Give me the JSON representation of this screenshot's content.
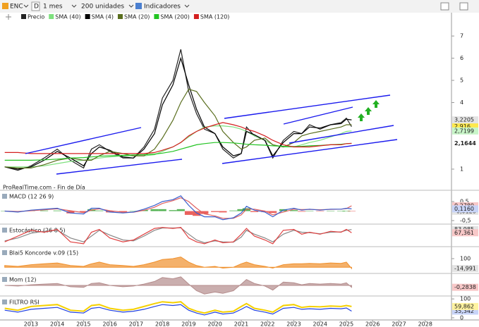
{
  "toolbar": {
    "symbol": "ENC",
    "period_letter": "D",
    "period": "1 mes",
    "units": "200 unidades",
    "indicators": "Indicadores"
  },
  "source": "ProRealTime.com - Fin de Día",
  "chart_data": [
    {
      "type": "line",
      "x": [
        2012.0,
        2012.5,
        2013.0,
        2013.5,
        2014.0,
        2014.5,
        2015.0,
        2015.3,
        2015.6,
        2016.0,
        2016.5,
        2016.9,
        2017.3,
        2017.7,
        2018.0,
        2018.4,
        2018.7,
        2019.0,
        2019.3,
        2019.6,
        2020.0,
        2020.3,
        2020.7,
        2021.0,
        2021.2,
        2021.5,
        2021.9,
        2022.2,
        2022.6,
        2023.0,
        2023.3,
        2023.6,
        2024.0,
        2024.4,
        2024.8,
        2025.0,
        2025.2
      ],
      "xlim": [
        2011.82,
        2029.0
      ],
      "xticks": [
        2013,
        2014,
        2015,
        2016,
        2017,
        2018,
        2019,
        2020,
        2021,
        2022,
        2023,
        2024,
        2025,
        2026,
        2027,
        2028
      ],
      "ylim": [
        0.11,
        7.67
      ],
      "yticks": [
        1,
        4,
        5,
        6,
        7
      ],
      "series": [
        {
          "name": "Precio",
          "color": "#222222",
          "style": "line",
          "values": [
            1.1,
            0.95,
            1.15,
            1.5,
            1.9,
            1.4,
            1.05,
            1.9,
            2.1,
            1.8,
            1.5,
            1.5,
            2.0,
            2.8,
            4.2,
            5.0,
            6.4,
            4.5,
            3.5,
            2.8,
            2.6,
            1.9,
            1.5,
            1.7,
            2.9,
            2.5,
            2.3,
            1.5,
            2.3,
            2.7,
            2.6,
            3.0,
            2.8,
            3.0,
            3.1,
            3.3,
            2.916
          ],
          "last_value_label": "2,916",
          "label_fill": "#ffe94d"
        },
        {
          "name": "SMA (40)",
          "color": "#7ee07e",
          "style": "line",
          "values": [
            1.1,
            1.1,
            1.1,
            1.15,
            1.25,
            1.35,
            1.4,
            1.45,
            1.5,
            1.55,
            1.6,
            1.6,
            1.6,
            1.65,
            1.8,
            2.0,
            2.2,
            2.45,
            2.7,
            2.9,
            2.95,
            2.95,
            2.9,
            2.8,
            2.7,
            2.5,
            2.3,
            2.1,
            2.0,
            2.0,
            2.1,
            2.2,
            2.3,
            2.45,
            2.6,
            2.7,
            2.7199
          ],
          "last_value_label": "2,7199",
          "label_fill": "#c8f5c8"
        },
        {
          "name": "SMA (4)",
          "color": "#000000",
          "style": "line",
          "values": [
            1.1,
            1.0,
            1.1,
            1.4,
            1.8,
            1.5,
            1.15,
            1.7,
            2.0,
            1.85,
            1.55,
            1.5,
            1.9,
            2.6,
            3.9,
            4.8,
            6.0,
            4.8,
            3.7,
            2.9,
            2.6,
            2.0,
            1.6,
            1.7,
            2.7,
            2.55,
            2.3,
            1.6,
            2.2,
            2.6,
            2.6,
            2.9,
            2.85,
            3.0,
            3.05,
            3.25,
            3.2205
          ],
          "last_value_label": "3,2205",
          "label_fill": "#e4e4e4"
        },
        {
          "name": "SMA (20)",
          "color": "#5a6e1e",
          "style": "line",
          "values": [
            1.1,
            1.05,
            1.05,
            1.2,
            1.4,
            1.5,
            1.4,
            1.4,
            1.6,
            1.8,
            1.7,
            1.6,
            1.6,
            1.9,
            2.4,
            3.2,
            4.0,
            4.6,
            4.5,
            4.0,
            3.4,
            2.7,
            2.2,
            1.9,
            2.0,
            2.3,
            2.4,
            2.1,
            2.0,
            2.2,
            2.5,
            2.6,
            2.7,
            2.8,
            2.9,
            3.0,
            3.0
          ]
        },
        {
          "name": "SMA (200)",
          "color": "#22c422",
          "style": "line",
          "values": [
            1.4,
            1.4,
            1.4,
            1.42,
            1.45,
            1.5,
            1.52,
            1.55,
            1.58,
            1.6,
            1.62,
            1.64,
            1.65,
            1.68,
            1.72,
            1.8,
            1.9,
            2.0,
            2.1,
            2.15,
            2.2,
            2.2,
            2.18,
            2.15,
            2.12,
            2.1,
            2.08,
            2.05,
            2.03,
            2.02,
            2.03,
            2.05,
            2.07,
            2.1,
            2.12,
            2.15,
            2.1644
          ],
          "last_value_label": "2,1644",
          "label_fill": "#ffffff"
        },
        {
          "name": "SMA (120)",
          "color": "#d42020",
          "style": "line",
          "values": [
            1.75,
            1.75,
            1.7,
            1.7,
            1.7,
            1.7,
            1.7,
            1.7,
            1.7,
            1.7,
            1.7,
            1.7,
            1.7,
            1.75,
            1.85,
            2.0,
            2.2,
            2.5,
            2.7,
            2.85,
            3.0,
            3.1,
            3.0,
            2.9,
            2.8,
            2.7,
            2.5,
            2.3,
            2.1,
            2.0,
            2.0,
            2.0,
            2.05,
            2.1,
            2.1,
            2.15,
            2.16
          ]
        }
      ]
    },
    {
      "type": "line",
      "title": "MACD (12 26 9)",
      "ylim": [
        -0.685,
        1.02
      ],
      "yticks": [
        {
          "value": 0.5,
          "label": "0,5"
        },
        {
          "value": -0.5,
          "label": "-0,5"
        }
      ],
      "series": [
        {
          "color": "#2ca02c",
          "negative_color": "#e53935",
          "style": "bars",
          "values": [
            0,
            -0.03,
            0.03,
            0.03,
            0.03,
            -0.12,
            -0.07,
            0.1,
            0.03,
            -0.07,
            -0.04,
            0.01,
            0.06,
            0.1,
            0.1,
            0.05,
            0.1,
            -0.2,
            -0.25,
            -0.15,
            -0.05,
            -0.07,
            0.03,
            0.1,
            0.15,
            -0.05,
            -0.05,
            -0.1,
            0.1,
            0.05,
            -0.03,
            0.01,
            -0.02,
            0.01,
            0,
            0.02,
            -0.0128
          ],
          "last_value_label": "-0,0128",
          "label_fill": "#e4e4e4"
        },
        {
          "color": "#e06060",
          "style": "line",
          "values": [
            0,
            -0.02,
            0.02,
            0.07,
            0.12,
            0.02,
            -0.08,
            0.05,
            0.12,
            0.02,
            -0.06,
            -0.06,
            0.04,
            0.2,
            0.4,
            0.55,
            0.7,
            0.5,
            0.15,
            -0.15,
            -0.25,
            -0.38,
            -0.38,
            -0.2,
            0.1,
            0.1,
            0,
            -0.2,
            -0.05,
            0.1,
            0.08,
            0.09,
            0.07,
            0.09,
            0.1,
            0.13,
            0.278
          ],
          "last_value_label": "0,2780",
          "label_fill": "#f8c8c8"
        },
        {
          "color": "#3a5fcd",
          "style": "line",
          "values": [
            0,
            -0.05,
            0.05,
            0.1,
            0.15,
            -0.1,
            -0.15,
            0.15,
            0.15,
            -0.05,
            -0.1,
            -0.05,
            0.1,
            0.3,
            0.5,
            0.6,
            0.8,
            0.3,
            -0.1,
            -0.3,
            -0.3,
            -0.45,
            -0.35,
            -0.1,
            0.25,
            0.05,
            -0.05,
            -0.3,
            0.05,
            0.15,
            0.05,
            0.1,
            0.05,
            0.1,
            0.1,
            0.15,
            0.116
          ],
          "last_value_label": "0,1160",
          "label_fill": "#c8d4f8"
        }
      ]
    },
    {
      "type": "line",
      "title": "Estocástico (26 8 5)",
      "ylim": [
        -5,
        105
      ],
      "series": [
        {
          "color": "#888888",
          "style": "line",
          "values": [
            25,
            40,
            65,
            75,
            80,
            40,
            20,
            50,
            80,
            55,
            30,
            25,
            50,
            80,
            92,
            92,
            93,
            60,
            30,
            15,
            25,
            20,
            18,
            45,
            80,
            60,
            40,
            20,
            60,
            80,
            70,
            68,
            62,
            70,
            72,
            80,
            83.985
          ],
          "last_value_label": "83,985",
          "label_fill": "#e4e4e4"
        },
        {
          "color": "#e04040",
          "style": "line",
          "values": [
            20,
            50,
            80,
            70,
            85,
            20,
            10,
            70,
            85,
            40,
            20,
            30,
            60,
            90,
            95,
            90,
            95,
            40,
            20,
            10,
            30,
            15,
            20,
            60,
            90,
            50,
            30,
            10,
            80,
            85,
            60,
            70,
            60,
            75,
            70,
            85,
            67.361
          ],
          "last_value_label": "67,361",
          "label_fill": "#f8c8c8"
        }
      ]
    },
    {
      "type": "line",
      "title": "Blai5 Koncorde v.09 (15)",
      "ylim": [
        -72,
        223
      ],
      "yticks": [
        100
      ],
      "series": [
        {
          "color": "#f0902c",
          "style": "area",
          "values": [
            20,
            10,
            30,
            40,
            50,
            20,
            10,
            40,
            60,
            30,
            20,
            10,
            30,
            60,
            90,
            100,
            120,
            60,
            20,
            0,
            10,
            -10,
            0,
            40,
            60,
            30,
            10,
            -10,
            30,
            40,
            40,
            45,
            40,
            50,
            45,
            60,
            -14.991
          ],
          "last_value_label": "-14,991",
          "label_fill": "#e4e4e4"
        }
      ]
    },
    {
      "type": "line",
      "title": "Mom (12)",
      "ylim": [
        -1.6,
        1.6
      ],
      "series": [
        {
          "color": "#b48c8c",
          "style": "area",
          "values": [
            0,
            -0.1,
            0.1,
            0.2,
            0.3,
            -0.2,
            -0.3,
            0.3,
            0.4,
            0,
            -0.2,
            -0.1,
            0.2,
            0.6,
            1.2,
            1.0,
            1.3,
            0.2,
            -0.8,
            -1.3,
            -1.0,
            -1.2,
            -0.8,
            0.2,
            0.9,
            0.3,
            -0.1,
            -0.7,
            0.5,
            0.4,
            0.1,
            0.3,
            0.2,
            0.3,
            0.2,
            0.4,
            -0.2838
          ],
          "last_value_label": "-0,2838",
          "label_fill": "#f8c8c8"
        }
      ]
    },
    {
      "type": "line",
      "title": "FILTRO RSI",
      "ylim": [
        -4,
        108
      ],
      "yticks": [
        0,
        100
      ],
      "series": [
        {
          "color": "#2040e0",
          "style": "line",
          "values": [
            40,
            30,
            45,
            50,
            55,
            30,
            25,
            50,
            55,
            40,
            30,
            35,
            45,
            60,
            70,
            65,
            70,
            40,
            25,
            15,
            30,
            20,
            25,
            45,
            60,
            40,
            30,
            20,
            50,
            55,
            45,
            48,
            45,
            50,
            48,
            52,
            35.342
          ],
          "last_value_label": "35,342",
          "label_fill": "#c8d4f8"
        },
        {
          "color": "#f5d000",
          "style": "line",
          "values": [
            50,
            40,
            60,
            65,
            70,
            40,
            35,
            65,
            70,
            50,
            40,
            45,
            60,
            75,
            85,
            80,
            85,
            50,
            35,
            25,
            40,
            30,
            35,
            60,
            75,
            50,
            40,
            30,
            65,
            70,
            55,
            60,
            58,
            62,
            60,
            65,
            59.862
          ],
          "last_value_label": "59,862",
          "label_fill": "#fff3a0"
        }
      ]
    }
  ]
}
